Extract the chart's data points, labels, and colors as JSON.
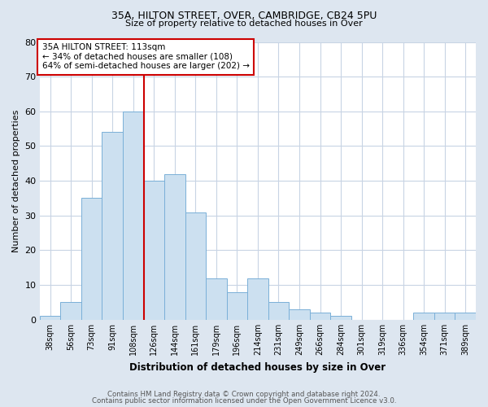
{
  "title1": "35A, HILTON STREET, OVER, CAMBRIDGE, CB24 5PU",
  "title2": "Size of property relative to detached houses in Over",
  "xlabel": "Distribution of detached houses by size in Over",
  "ylabel": "Number of detached properties",
  "categories": [
    "38sqm",
    "56sqm",
    "73sqm",
    "91sqm",
    "108sqm",
    "126sqm",
    "144sqm",
    "161sqm",
    "179sqm",
    "196sqm",
    "214sqm",
    "231sqm",
    "249sqm",
    "266sqm",
    "284sqm",
    "301sqm",
    "319sqm",
    "336sqm",
    "354sqm",
    "371sqm",
    "389sqm"
  ],
  "values": [
    1,
    5,
    35,
    54,
    60,
    40,
    42,
    31,
    12,
    8,
    12,
    5,
    3,
    2,
    1,
    0,
    0,
    0,
    2,
    2,
    2
  ],
  "bar_color": "#cce0f0",
  "bar_edge_color": "#7ab0d8",
  "grid_color": "#c8d4e4",
  "background_color": "#dde6f0",
  "axes_bg_color": "#ffffff",
  "vline_x_index": 4.5,
  "vline_color": "#cc0000",
  "annotation_text": "35A HILTON STREET: 113sqm\n← 34% of detached houses are smaller (108)\n64% of semi-detached houses are larger (202) →",
  "annotation_box_color": "#ffffff",
  "annotation_box_edge_color": "#cc0000",
  "ylim": [
    0,
    80
  ],
  "yticks": [
    0,
    10,
    20,
    30,
    40,
    50,
    60,
    70,
    80
  ],
  "footer1": "Contains HM Land Registry data © Crown copyright and database right 2024.",
  "footer2": "Contains public sector information licensed under the Open Government Licence v3.0."
}
